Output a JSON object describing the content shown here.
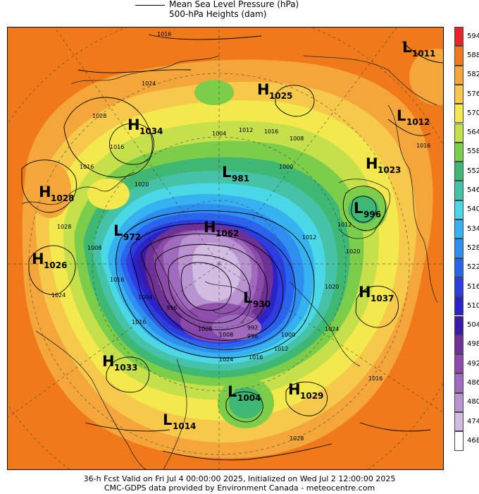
{
  "legend": {
    "line1": "Mean Sea Level Pressure (hPa)",
    "line2": "500-hPa Heights (dam)"
  },
  "colorbar": {
    "levels": [
      "594",
      "588",
      "582",
      "576",
      "570",
      "564",
      "558",
      "552",
      "546",
      "540",
      "534",
      "528",
      "522",
      "516",
      "510",
      "504",
      "498",
      "492",
      "486",
      "480",
      "474",
      "468"
    ],
    "colors": [
      "#e8232a",
      "#f07a1a",
      "#f5a63a",
      "#f7c94a",
      "#f3e84c",
      "#c4e04a",
      "#7ccd4a",
      "#3fb873",
      "#46c2a8",
      "#4ad8e6",
      "#36b2f0",
      "#2f8ff0",
      "#2b64ec",
      "#2d3de0",
      "#2b22c8",
      "#3a1aa6",
      "#6e3296",
      "#8c4ba8",
      "#a06bbe",
      "#b893d0",
      "#d2bce2",
      "#ffffff"
    ]
  },
  "centers": [
    {
      "type": "L",
      "value": "1011"
    },
    {
      "type": "H",
      "value": "1025"
    },
    {
      "type": "H",
      "value": "1034"
    },
    {
      "type": "L",
      "value": "1012"
    },
    {
      "type": "H",
      "value": "1023"
    },
    {
      "type": "L",
      "value": "981"
    },
    {
      "type": "H",
      "value": "1028"
    },
    {
      "type": "L",
      "value": "996"
    },
    {
      "type": "L",
      "value": "972"
    },
    {
      "type": "H",
      "value": "1062"
    },
    {
      "type": "H",
      "value": "1026"
    },
    {
      "type": "L",
      "value": "930"
    },
    {
      "type": "H",
      "value": "1037"
    },
    {
      "type": "H",
      "value": "1033"
    },
    {
      "type": "L",
      "value": "1004"
    },
    {
      "type": "H",
      "value": "1029"
    },
    {
      "type": "L",
      "value": "1014"
    }
  ],
  "isobar_labels": [
    "1016",
    "1024",
    "1028",
    "1016",
    "1012",
    "1016",
    "1004",
    "1008",
    "1016",
    "1020",
    "1000",
    "1008",
    "1024",
    "996",
    "1016",
    "1028",
    "1016",
    "1008",
    "1004",
    "1012",
    "1012",
    "996",
    "1024",
    "992",
    "1000",
    "1016",
    "1012",
    "1020",
    "1008",
    "1024",
    "1016",
    "1020",
    "1028",
    "1016"
  ],
  "footer": {
    "line1": "36-h Fcst Valid on Fri Jul  4 00:00:00 2025, Initialized on Wed Jul  2 12:00:00 2025",
    "line2": "CMC-GDPS data provided by Environment Canada - meteocentre.com"
  }
}
